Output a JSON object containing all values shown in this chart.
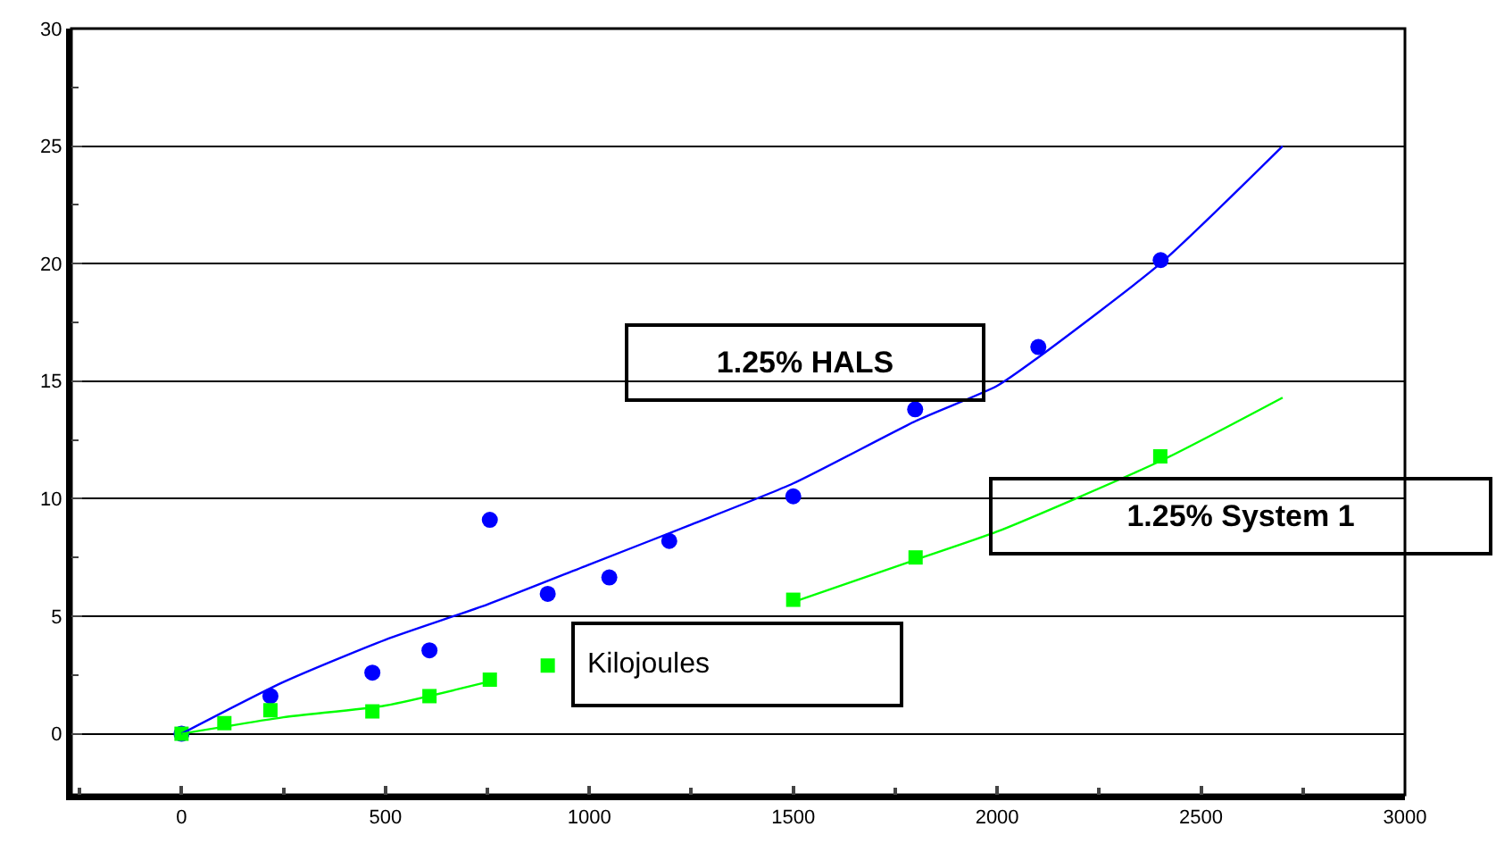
{
  "chart_data": {
    "type": "scatter",
    "xlabel": "Kilojoules",
    "annotations": [
      "1.25% HALS",
      "1.25% System 1"
    ],
    "xlim": [
      -270,
      3000
    ],
    "ylim": [
      -2.6,
      30
    ],
    "xticks": [
      {
        "value": -250,
        "label": null
      },
      0,
      {
        "value": 250,
        "label": null
      },
      500,
      {
        "value": 750,
        "label": null
      },
      1000,
      {
        "value": 1250,
        "label": null
      },
      1500,
      {
        "value": 1750,
        "label": null
      },
      2000,
      {
        "value": 2250,
        "label": null
      },
      2500,
      {
        "value": 2750,
        "label": null
      },
      3000
    ],
    "yticks": [
      0,
      {
        "value": 2.5,
        "label": null
      },
      5,
      {
        "value": 7.5,
        "label": null
      },
      10,
      {
        "value": 12.5,
        "label": null
      },
      15,
      {
        "value": 17.5,
        "label": null
      },
      20,
      {
        "value": 22.5,
        "label": null
      },
      25,
      {
        "value": 27.5,
        "label": null
      },
      30
    ],
    "grid": "y",
    "series": [
      {
        "marker": "circle",
        "color": "#0000ff",
        "x": [
          0,
          218,
          468,
          608,
          756,
          898,
          1049,
          1196,
          1500,
          1799,
          2101,
          2401
        ],
        "values": [
          0,
          1.6,
          2.6,
          3.55,
          9.1,
          5.95,
          6.65,
          8.2,
          10.1,
          13.8,
          16.45,
          20.15
        ]
      },
      {
        "marker": "square",
        "color": "#00ff00",
        "x": [
          0,
          105,
          218,
          468,
          608,
          756,
          898,
          1500,
          1800,
          2400
        ],
        "values": [
          0,
          0.45,
          1.0,
          0.95,
          1.6,
          2.3,
          2.9,
          5.7,
          7.5,
          11.8
        ]
      },
      {
        "type": "line",
        "marker": "none",
        "color": "#0000ff",
        "x": [
          0,
          250,
          500,
          750,
          1000,
          1250,
          1500,
          1800,
          2000,
          2100,
          2400,
          2700
        ],
        "values": [
          0,
          2.2,
          4.0,
          5.5,
          7.2,
          8.9,
          10.65,
          13.3,
          14.8,
          16.0,
          20.0,
          25.0
        ]
      },
      {
        "type": "line",
        "marker": "none",
        "color": "#00ff00",
        "x": [
          0,
          250,
          500,
          750,
          1000,
          1250,
          1500,
          1800,
          2000,
          2400,
          2700
        ],
        "values": [
          0,
          0.7,
          1.2,
          2.2,
          null,
          null,
          5.6,
          7.4,
          8.6,
          11.6,
          14.3
        ]
      }
    ]
  }
}
